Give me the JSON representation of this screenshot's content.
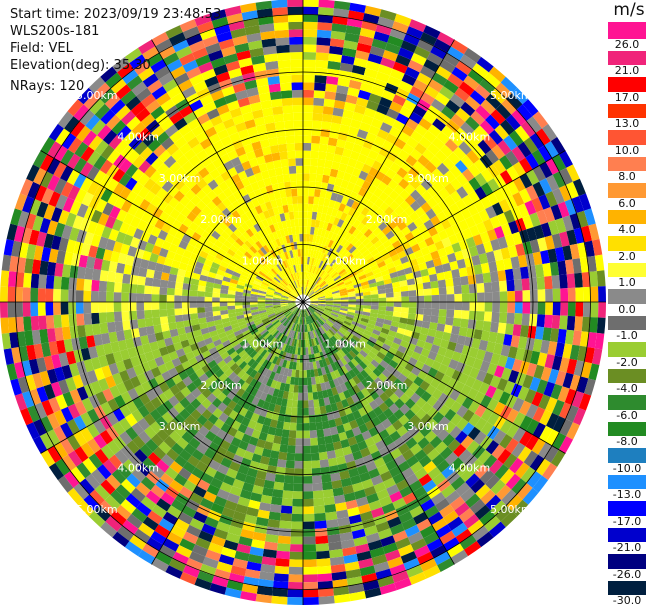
{
  "info": {
    "start_time": "Start time: 2023/09/19 23:48:53",
    "instrument": "WLS200s-181",
    "field": "Field: VEL",
    "elevation": "Elevation(deg): 35.30",
    "nrays": "NRays: 120"
  },
  "colorbar": {
    "unit": "m/s",
    "labels": [
      "26.0",
      "21.0",
      "17.0",
      "13.0",
      "10.0",
      "8.0",
      "6.0",
      "4.0",
      "2.0",
      "1.0",
      "0.0",
      "-1.0",
      "-2.0",
      "-4.0",
      "-6.0",
      "-8.0",
      "-10.0",
      "-13.0",
      "-17.0",
      "-21.0",
      "-26.0",
      "-30.0"
    ],
    "colors": [
      "#ff1493",
      "#f0247a",
      "#ff0000",
      "#ff3300",
      "#ff5533",
      "#ff7f50",
      "#ff9933",
      "#ffb300",
      "#ffe000",
      "#ffff33",
      "#8a8a8a",
      "#6e6e6e",
      "#9acd32",
      "#6b8e23",
      "#2e8b2e",
      "#228b22",
      "#1e7fbf",
      "#1e90ff",
      "#0000ff",
      "#0000cd",
      "#000080",
      "#001f3f"
    ]
  },
  "range_labels": [
    "1.00km",
    "2.00km",
    "3.00km",
    "4.00km",
    "5.00km"
  ]
}
